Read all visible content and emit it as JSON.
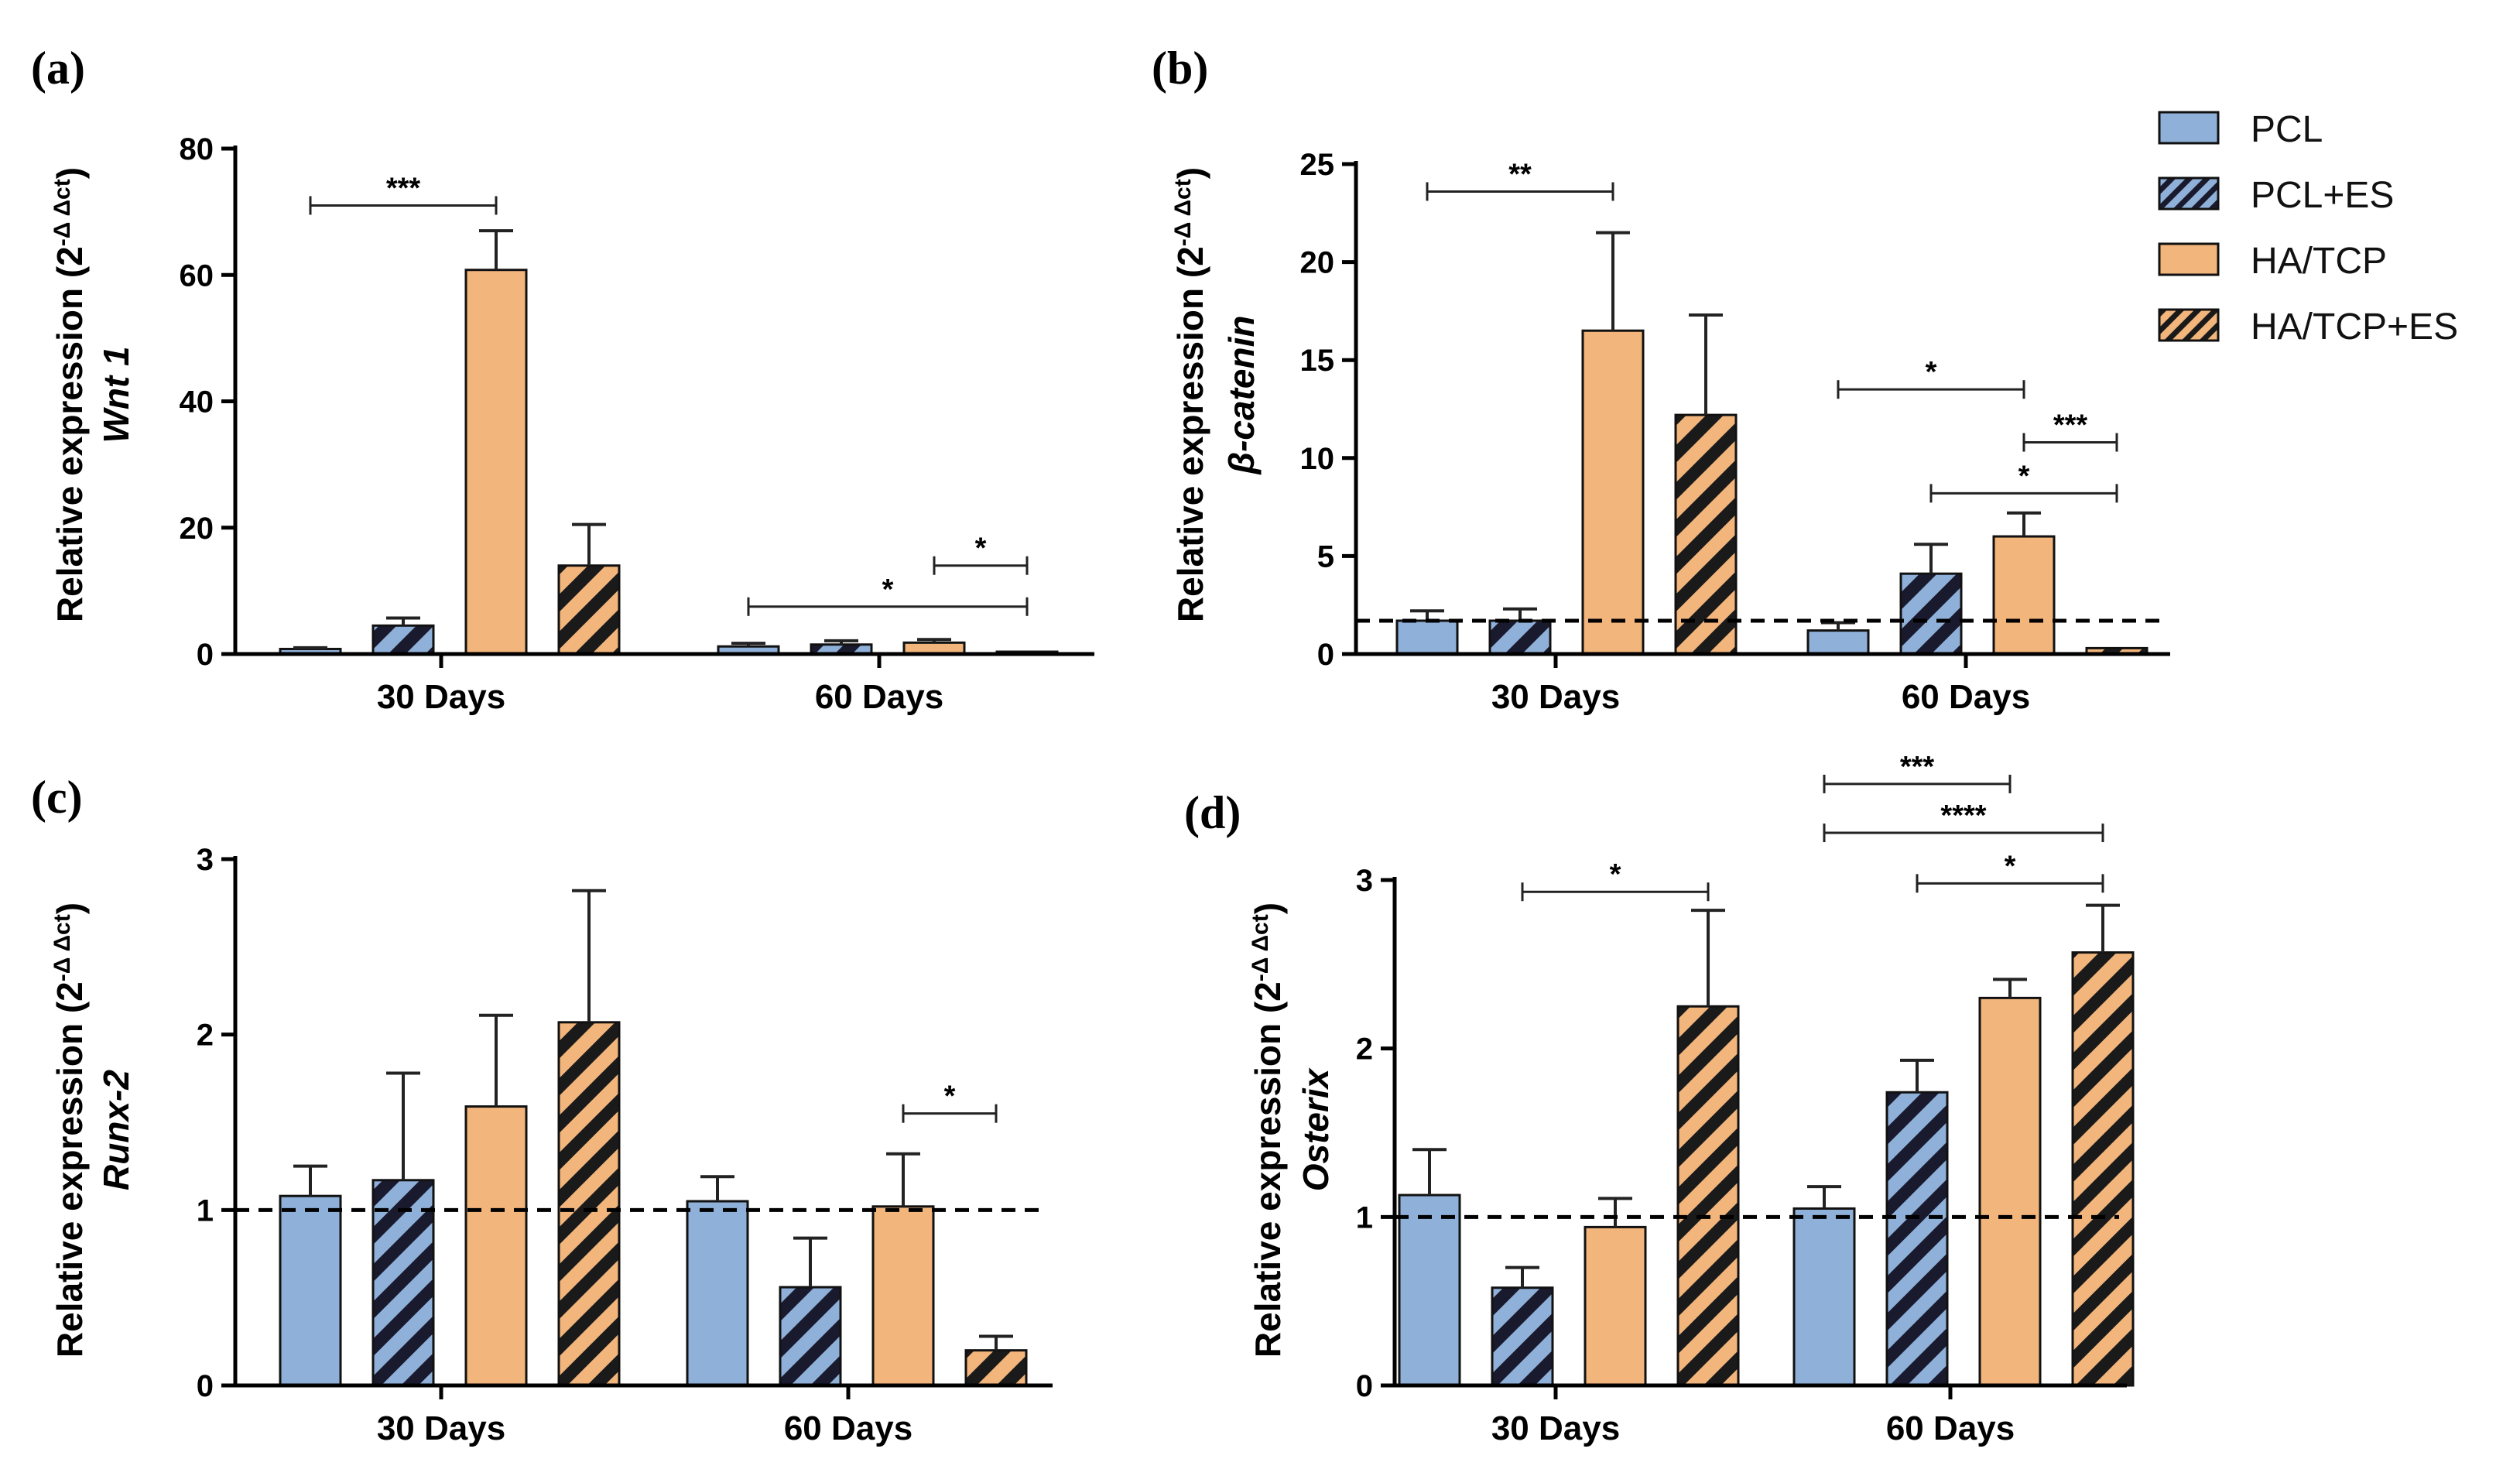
{
  "legend": {
    "items": [
      {
        "label": "PCL",
        "color": "#8fb0d8",
        "hatched": false
      },
      {
        "label": "PCL+ES",
        "color": "#8fb0d8",
        "hatched": true
      },
      {
        "label": "HA/TCP",
        "color": "#f2b57c",
        "hatched": false
      },
      {
        "label": "HA/TCP+ES",
        "color": "#f2b57c",
        "hatched": true
      }
    ]
  },
  "chart_data": [
    {
      "panel": "(a)",
      "type": "bar",
      "ylabel": "Relative expression (2",
      "ylabel_sup": "-Δ Δct",
      "ylabel_close": ")",
      "gene": "Wnt 1",
      "ylim": [
        0,
        80
      ],
      "yticks": [
        "0",
        "20",
        "40",
        "60",
        "80"
      ],
      "ytick_values": [
        0,
        20,
        40,
        60,
        80
      ],
      "baseline": null,
      "categories": [
        "30 Days",
        "60 Days"
      ],
      "series": [
        {
          "name": "PCL",
          "values": [
            0.8,
            1.2
          ],
          "errors": [
            0.2,
            0.5
          ]
        },
        {
          "name": "PCL+ES",
          "values": [
            4.5,
            1.5
          ],
          "errors": [
            1.2,
            0.6
          ]
        },
        {
          "name": "HA/TCP",
          "values": [
            60.8,
            1.8
          ],
          "errors": [
            6.2,
            0.5
          ]
        },
        {
          "name": "HA/TCP+ES",
          "values": [
            14.0,
            0
          ],
          "errors": [
            6.5,
            0
          ]
        }
      ],
      "significance": [
        {
          "label": "***",
          "from": [
            0,
            0
          ],
          "to": [
            0,
            2
          ],
          "y": 71
        },
        {
          "label": "*",
          "from": [
            1,
            0
          ],
          "to": [
            1,
            3
          ],
          "y": 7.5
        },
        {
          "label": "*",
          "from": [
            1,
            2
          ],
          "to": [
            1,
            3
          ],
          "y": 14
        }
      ]
    },
    {
      "panel": "(b)",
      "type": "bar",
      "ylabel": "Relative expression (2",
      "ylabel_sup": "-Δ Δct",
      "ylabel_close": ")",
      "gene": "β-catenin",
      "ylim": [
        0,
        25
      ],
      "yticks": [
        "0",
        "5",
        "10",
        "15",
        "20",
        "25"
      ],
      "ytick_values": [
        0,
        5,
        10,
        15,
        20,
        25
      ],
      "baseline": 1.7,
      "categories": [
        "30 Days",
        "60 Days"
      ],
      "series": [
        {
          "name": "PCL",
          "values": [
            1.7,
            1.2
          ],
          "errors": [
            0.5,
            0.4
          ]
        },
        {
          "name": "PCL+ES",
          "values": [
            1.7,
            4.1
          ],
          "errors": [
            0.6,
            1.5
          ]
        },
        {
          "name": "HA/TCP",
          "values": [
            16.5,
            6.0
          ],
          "errors": [
            5.0,
            1.2
          ]
        },
        {
          "name": "HA/TCP+ES",
          "values": [
            12.2,
            0.3
          ],
          "errors": [
            5.1,
            0
          ]
        }
      ],
      "significance": [
        {
          "label": "**",
          "from": [
            0,
            0
          ],
          "to": [
            0,
            2
          ],
          "y": 23.6
        },
        {
          "label": "*",
          "from": [
            1,
            0
          ],
          "to": [
            1,
            2
          ],
          "y": 13.5
        },
        {
          "label": "***",
          "from": [
            1,
            2
          ],
          "to": [
            1,
            3
          ],
          "y": 10.8
        },
        {
          "label": "*",
          "from": [
            1,
            1
          ],
          "to": [
            1,
            3
          ],
          "y": 8.2
        }
      ]
    },
    {
      "panel": "(c)",
      "type": "bar",
      "ylabel": "Relative expression (2",
      "ylabel_sup": "-Δ Δct",
      "ylabel_close": ")",
      "gene": "Runx-2",
      "ylim": [
        0,
        3
      ],
      "yticks": [
        "0",
        "1",
        "2",
        "3"
      ],
      "ytick_values": [
        0,
        1,
        2,
        3
      ],
      "baseline": 1.0,
      "categories": [
        "30 Days",
        "60 Days"
      ],
      "series": [
        {
          "name": "PCL",
          "values": [
            1.08,
            1.05
          ],
          "errors": [
            0.17,
            0.14
          ]
        },
        {
          "name": "PCL+ES",
          "values": [
            1.17,
            0.56
          ],
          "errors": [
            0.61,
            0.28
          ]
        },
        {
          "name": "HA/TCP",
          "values": [
            1.59,
            1.02
          ],
          "errors": [
            0.52,
            0.3
          ]
        },
        {
          "name": "HA/TCP+ES",
          "values": [
            2.07,
            0.2
          ],
          "errors": [
            0.75,
            0.08
          ]
        }
      ],
      "significance": [
        {
          "label": "*",
          "from": [
            1,
            2
          ],
          "to": [
            1,
            3
          ],
          "y": 1.55
        }
      ]
    },
    {
      "panel": "(d)",
      "type": "bar",
      "ylabel": "Relative expression (2",
      "ylabel_sup": "-Δ Δct",
      "ylabel_close": ")",
      "gene": "Osterix",
      "ylim": [
        0,
        3
      ],
      "yticks": [
        "0",
        "1",
        "2",
        "3"
      ],
      "ytick_values": [
        0,
        1,
        2,
        3
      ],
      "baseline": 1.0,
      "categories": [
        "30 Days",
        "60 Days"
      ],
      "series": [
        {
          "name": "PCL",
          "values": [
            1.13,
            1.05
          ],
          "errors": [
            0.27,
            0.13
          ]
        },
        {
          "name": "PCL+ES",
          "values": [
            0.58,
            1.74
          ],
          "errors": [
            0.12,
            0.19
          ]
        },
        {
          "name": "HA/TCP",
          "values": [
            0.94,
            2.3
          ],
          "errors": [
            0.17,
            0.11
          ]
        },
        {
          "name": "HA/TCP+ES",
          "values": [
            2.25,
            2.57
          ],
          "errors": [
            0.57,
            0.28
          ]
        }
      ],
      "significance": [
        {
          "label": "*",
          "from": [
            0,
            1
          ],
          "to": [
            0,
            3
          ],
          "y": 2.93
        },
        {
          "label": "***",
          "from": [
            1,
            0
          ],
          "to": [
            1,
            2
          ],
          "y": 3.57
        },
        {
          "label": "****",
          "from": [
            1,
            0
          ],
          "to": [
            1,
            3
          ],
          "y": 3.28
        },
        {
          "label": "*",
          "from": [
            1,
            1
          ],
          "to": [
            1,
            3
          ],
          "y": 2.98
        }
      ]
    }
  ]
}
